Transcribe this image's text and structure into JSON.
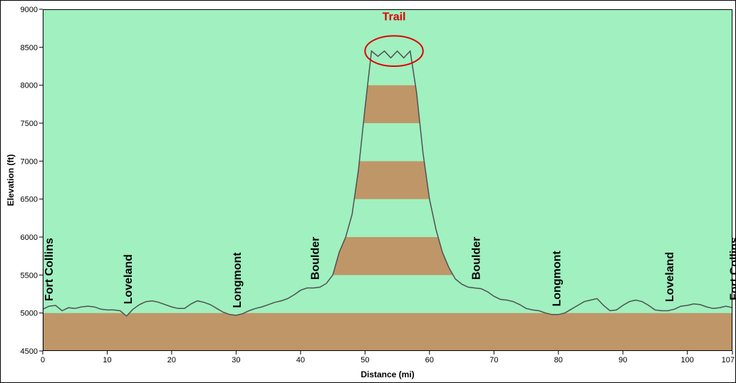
{
  "chart_data": {
    "type": "area",
    "xlabel": "Distance   (mi)",
    "ylabel": "Elevation (ft)",
    "xlim": [
      0,
      107
    ],
    "ylim": [
      4500,
      9000
    ],
    "x_ticks": [
      0,
      10,
      20,
      30,
      40,
      50,
      60,
      70,
      80,
      90,
      100,
      107
    ],
    "y_ticks": [
      4500,
      5000,
      5500,
      6000,
      6500,
      7000,
      7500,
      8000,
      8500,
      9000
    ],
    "band_colors": [
      "#a0f0c0",
      "#bf9668"
    ],
    "line_color": "#505050",
    "profile": {
      "x": [
        0,
        1,
        2,
        3,
        4,
        5,
        6,
        7,
        8,
        9,
        10,
        11,
        12,
        13,
        14,
        15,
        16,
        17,
        18,
        19,
        20,
        21,
        22,
        23,
        24,
        25,
        26,
        27,
        28,
        29,
        30,
        31,
        32,
        33,
        34,
        35,
        36,
        37,
        38,
        39,
        40,
        41,
        42,
        43,
        44,
        45,
        46,
        47,
        48,
        49,
        50,
        51,
        52,
        53,
        54,
        55,
        56,
        57,
        58,
        59,
        60,
        61,
        62,
        63,
        64,
        65,
        66,
        67,
        68,
        69,
        70,
        71,
        72,
        73,
        74,
        75,
        76,
        77,
        78,
        79,
        80,
        81,
        82,
        83,
        84,
        85,
        86,
        87,
        88,
        89,
        90,
        91,
        92,
        93,
        94,
        95,
        96,
        97,
        98,
        99,
        100,
        101,
        102,
        103,
        104,
        105,
        106,
        107
      ],
      "y": [
        5050,
        5090,
        5100,
        5030,
        5070,
        5060,
        5080,
        5090,
        5080,
        5050,
        5040,
        5040,
        5030,
        4960,
        5050,
        5110,
        5150,
        5160,
        5140,
        5110,
        5080,
        5060,
        5060,
        5120,
        5160,
        5140,
        5110,
        5060,
        5010,
        4980,
        4970,
        4990,
        5030,
        5060,
        5080,
        5110,
        5140,
        5160,
        5190,
        5240,
        5300,
        5330,
        5330,
        5340,
        5390,
        5500,
        5800,
        6000,
        6300,
        6900,
        7700,
        8450,
        8380,
        8450,
        8360,
        8450,
        8360,
        8450,
        7900,
        7100,
        6500,
        6100,
        5800,
        5600,
        5450,
        5380,
        5340,
        5330,
        5320,
        5280,
        5220,
        5180,
        5170,
        5150,
        5110,
        5060,
        5040,
        5030,
        5000,
        4980,
        4980,
        5000,
        5050,
        5100,
        5150,
        5170,
        5190,
        5100,
        5030,
        5040,
        5100,
        5150,
        5170,
        5150,
        5100,
        5040,
        5030,
        5030,
        5050,
        5090,
        5100,
        5120,
        5110,
        5080,
        5060,
        5070,
        5090,
        5070
      ]
    },
    "annotations": [
      {
        "text": "Fort Collins",
        "x": 0.2,
        "y": 5100
      },
      {
        "text": "Loveland",
        "x": 12.5,
        "y": 5060
      },
      {
        "text": "Longmont",
        "x": 29.4,
        "y": 5010
      },
      {
        "text": "Boulder",
        "x": 41.5,
        "y": 5380
      },
      {
        "text": "Boulder",
        "x": 66.5,
        "y": 5380
      },
      {
        "text": "Longmont",
        "x": 79.0,
        "y": 5030
      },
      {
        "text": "Loveland",
        "x": 96.5,
        "y": 5090
      },
      {
        "text": "Fort Collins",
        "x": 106.5,
        "y": 5110
      }
    ],
    "highlight": {
      "text": "Trail",
      "x_center": 54.5,
      "y_center": 8450,
      "x_radius": 4.5,
      "y_radius": 200,
      "color": "#e00000"
    }
  }
}
